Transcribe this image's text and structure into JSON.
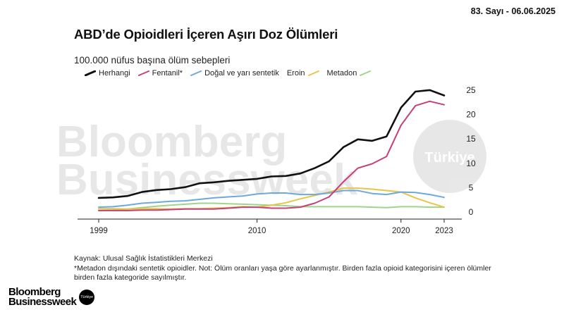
{
  "header": {
    "issue": "83. Sayı - 06.06.2025"
  },
  "brand": {
    "line1": "Bloomberg",
    "line2": "Businessweek",
    "badge": "Türkiye"
  },
  "watermark": {
    "line1": "Bloomberg",
    "line2": "Businessweek",
    "badge": "Türkiye"
  },
  "colors": {
    "any": "#111111",
    "fentanyl": "#c4407a",
    "natural": "#6fa8dc",
    "heroin": "#e8c547",
    "methadone": "#9fd48a"
  },
  "chart_data": {
    "type": "line",
    "title": "ABD’de Opioidleri İçeren Aşırı Doz Ölümleri",
    "subtitle": "100.000 nüfus başına ölüm sebepleri",
    "x": [
      1999,
      2000,
      2001,
      2002,
      2003,
      2004,
      2005,
      2006,
      2007,
      2008,
      2009,
      2010,
      2011,
      2012,
      2013,
      2014,
      2015,
      2016,
      2017,
      2018,
      2019,
      2020,
      2021,
      2022,
      2023
    ],
    "series": [
      {
        "name": "Herhangi",
        "color": "#111111",
        "values": [
          2.9,
          3.0,
          3.3,
          4.1,
          4.5,
          4.7,
          5.1,
          5.9,
          6.1,
          6.4,
          6.6,
          6.8,
          7.3,
          7.4,
          7.9,
          9.0,
          10.4,
          13.3,
          14.9,
          14.6,
          15.5,
          21.4,
          24.7,
          25.0,
          23.9
        ]
      },
      {
        "name": "Fentanil*",
        "color": "#c4407a",
        "values": [
          0.3,
          0.3,
          0.3,
          0.4,
          0.4,
          0.5,
          0.6,
          0.6,
          0.6,
          0.8,
          1.0,
          1.0,
          0.8,
          0.8,
          1.0,
          1.8,
          3.1,
          6.2,
          9.0,
          9.9,
          11.4,
          17.8,
          21.8,
          22.7,
          22.0
        ]
      },
      {
        "name": "Doğal ve yarı sentetik",
        "color": "#6fa8dc",
        "values": [
          1.0,
          1.1,
          1.4,
          1.8,
          2.0,
          2.2,
          2.3,
          2.6,
          2.9,
          3.1,
          3.3,
          3.7,
          3.9,
          3.9,
          3.6,
          3.6,
          3.9,
          4.4,
          4.4,
          3.8,
          3.6,
          4.1,
          4.0,
          3.6,
          3.0
        ]
      },
      {
        "name": "Eroin",
        "color": "#e8c547",
        "values": [
          0.7,
          0.7,
          0.6,
          0.7,
          0.7,
          0.6,
          0.7,
          0.7,
          0.8,
          0.9,
          1.1,
          1.0,
          1.4,
          1.9,
          2.7,
          3.4,
          4.1,
          4.9,
          4.9,
          4.7,
          4.4,
          4.1,
          2.9,
          1.9,
          1.0
        ]
      },
      {
        "name": "Metadon",
        "color": "#9fd48a",
        "values": [
          0.3,
          0.4,
          0.6,
          0.9,
          1.2,
          1.4,
          1.6,
          1.8,
          1.8,
          1.7,
          1.6,
          1.5,
          1.4,
          1.3,
          1.1,
          1.1,
          1.1,
          1.1,
          1.1,
          1.0,
          0.9,
          1.1,
          1.1,
          1.0,
          1.0
        ]
      }
    ],
    "legend_labels": [
      "Herhangi",
      "Fentanil*",
      "Doğal ve yarı sentetik",
      "Eroin",
      "Metadon"
    ],
    "x_ticks": [
      1999,
      2010,
      2020,
      2023
    ],
    "y_ticks": [
      0,
      5,
      10,
      15,
      20,
      25
    ],
    "ylim": [
      0,
      26
    ],
    "xlim": [
      1999,
      2023
    ],
    "y_axis_side": "right",
    "grid": false,
    "legend": "top-left"
  },
  "footer": {
    "source": "Kaynak: Ulusal Sağlık İstatistikleri Merkezi",
    "note": "*Metadon dışındaki sentetik opioidler. Not: Ölüm oranları yaşa göre ayarlanmıştır. Birden fazla opioid kategorisini içeren ölümler birden fazla kategoride sayılmıştır."
  }
}
